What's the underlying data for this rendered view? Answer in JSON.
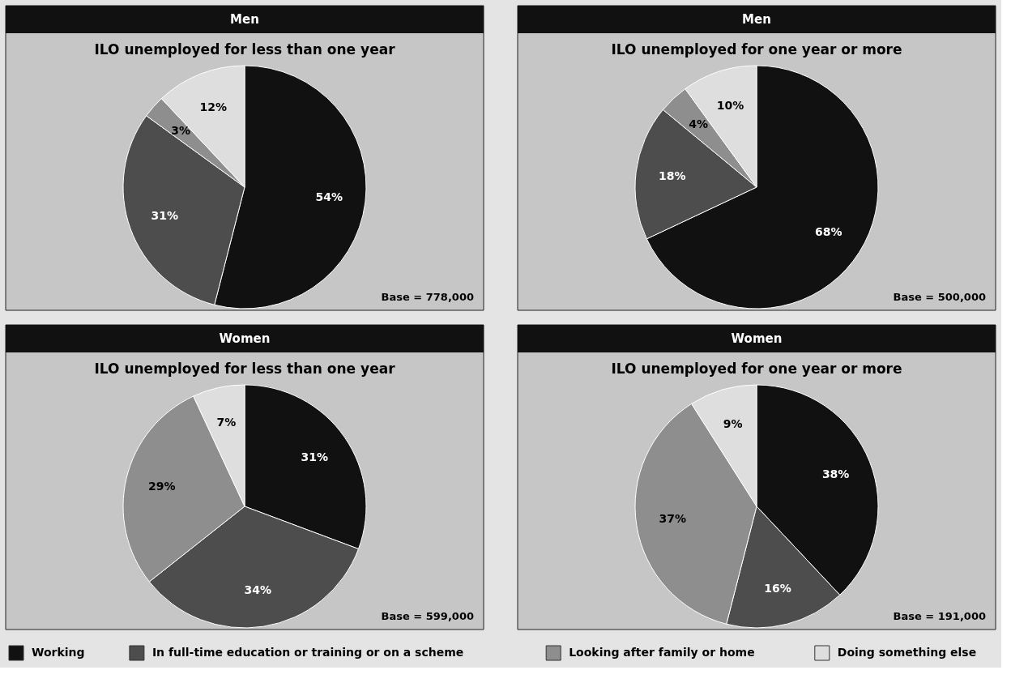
{
  "chart_data": [
    {
      "type": "pie",
      "title": "Men",
      "subtitle": "ILO unemployed for less than one year",
      "categories": [
        "Working",
        "In full-time education or training or on a scheme",
        "Looking after family or home",
        "Doing something else"
      ],
      "values": [
        54,
        31,
        3,
        12
      ],
      "value_labels": [
        "54%",
        "31%",
        "3%",
        "12%"
      ],
      "colors": [
        "#111111",
        "#4d4d4d",
        "#8e8e8e",
        "#dedede"
      ],
      "annotations": [
        "Base = 778,000"
      ],
      "legend": "bottom"
    },
    {
      "type": "pie",
      "title": "Men",
      "subtitle": "ILO unemployed for one year or more",
      "categories": [
        null,
        null,
        null,
        null
      ],
      "values": [
        68,
        18,
        4,
        10
      ],
      "value_labels": [
        "68%",
        "18%",
        "4%",
        "10%"
      ],
      "colors": [
        "#111111",
        "#4d4d4d",
        "#8e8e8e",
        "#dedede"
      ],
      "annotations": [
        "Base = 500,000"
      ]
    },
    {
      "type": "pie",
      "title": "Women",
      "subtitle": "ILO unemployed for less than one year",
      "categories": [
        null,
        null,
        null,
        null
      ],
      "values": [
        31,
        34,
        29,
        7
      ],
      "value_labels": [
        "31%",
        "34%",
        "29%",
        "7%"
      ],
      "colors": [
        "#111111",
        "#4d4d4d",
        "#8e8e8e",
        "#dedede"
      ],
      "annotations": [
        "Base = 599,000"
      ]
    },
    {
      "type": "pie",
      "title": "Women",
      "subtitle": "ILO unemployed for one year or more",
      "categories": [
        null,
        null,
        null,
        null
      ],
      "values": [
        38,
        16,
        37,
        9
      ],
      "value_labels": [
        "38%",
        "16%",
        "37%",
        "9%"
      ],
      "colors": [
        "#111111",
        "#4d4d4d",
        "#8e8e8e",
        "#dedede"
      ],
      "annotations": [
        "Base = 191,000"
      ]
    }
  ]
}
